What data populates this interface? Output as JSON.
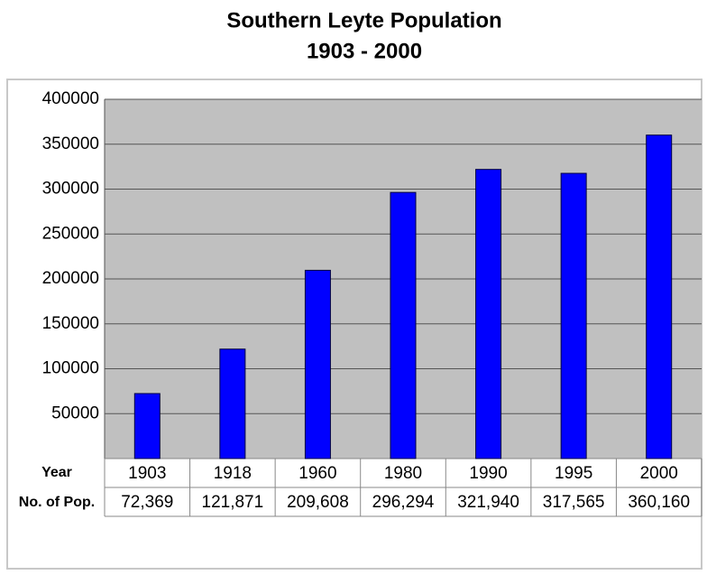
{
  "chart_data": {
    "type": "bar",
    "title": "Southern Leyte Population",
    "subtitle": "1903 - 2000",
    "categories": [
      "1903",
      "1918",
      "1960",
      "1980",
      "1990",
      "1995",
      "2000"
    ],
    "values": [
      72369,
      121871,
      209608,
      296294,
      321940,
      317565,
      360160
    ],
    "value_labels": [
      "72,369",
      "121,871",
      "209,608",
      "296,294",
      "321,940",
      "317,565",
      "360,160"
    ],
    "table_row_labels": [
      "Year",
      "No. of Pop."
    ],
    "color": "#0000ff",
    "plot_background": "#c0c0c0",
    "ylim": [
      0,
      400000
    ],
    "yticks": [
      50000,
      100000,
      150000,
      200000,
      250000,
      300000,
      350000,
      400000
    ],
    "grid": true
  }
}
